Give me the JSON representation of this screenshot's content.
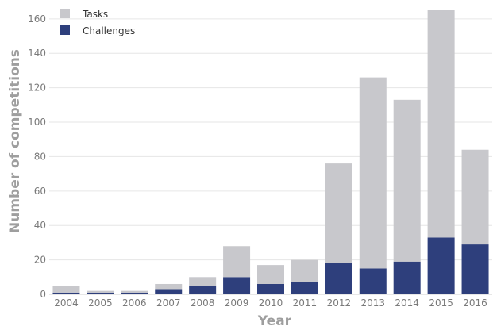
{
  "chart_data": {
    "type": "bar",
    "stacked": true,
    "categories": [
      "2004",
      "2005",
      "2006",
      "2007",
      "2008",
      "2009",
      "2010",
      "2011",
      "2012",
      "2013",
      "2014",
      "2015",
      "2016"
    ],
    "series": [
      {
        "name": "Challenges",
        "color": "#2e3f7c",
        "values": [
          1,
          1,
          1,
          3,
          5,
          10,
          6,
          7,
          18,
          15,
          19,
          33,
          29
        ]
      },
      {
        "name": "Tasks",
        "color": "#c8c8cc",
        "values": [
          4,
          1,
          1,
          3,
          5,
          18,
          11,
          13,
          58,
          111,
          94,
          132,
          55
        ]
      }
    ],
    "legend": [
      "Tasks",
      "Challenges"
    ],
    "xlabel": "Year",
    "ylabel": "Number of competitions",
    "ylim": [
      0,
      165
    ],
    "yticks": [
      0,
      20,
      40,
      60,
      80,
      100,
      120,
      140,
      160
    ],
    "grid": true,
    "legend_position": "top-left"
  }
}
